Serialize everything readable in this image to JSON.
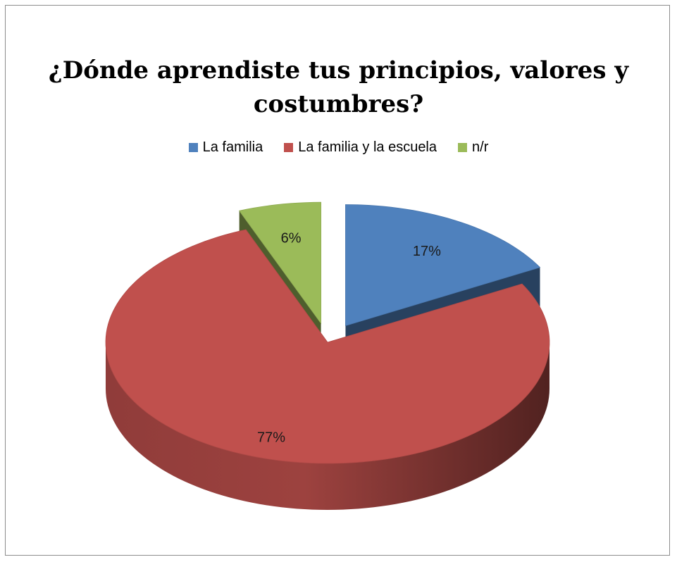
{
  "chart_data": {
    "type": "pie",
    "title": "¿Dónde aprendiste tus principios, valores y costumbres?",
    "title_lines": [
      "¿Dónde aprendiste tus principios, valores y",
      "costumbres?"
    ],
    "legend_position": "top",
    "labels": [
      "La familia",
      "La familia y la escuela",
      "n/r"
    ],
    "values": [
      17,
      77,
      6
    ],
    "data_labels": [
      "17%",
      "77%",
      "6%"
    ],
    "colors": [
      "#4f81bd",
      "#c0504d",
      "#9bbb59"
    ],
    "exploded": [
      true,
      false,
      true
    ],
    "style": "3d"
  }
}
